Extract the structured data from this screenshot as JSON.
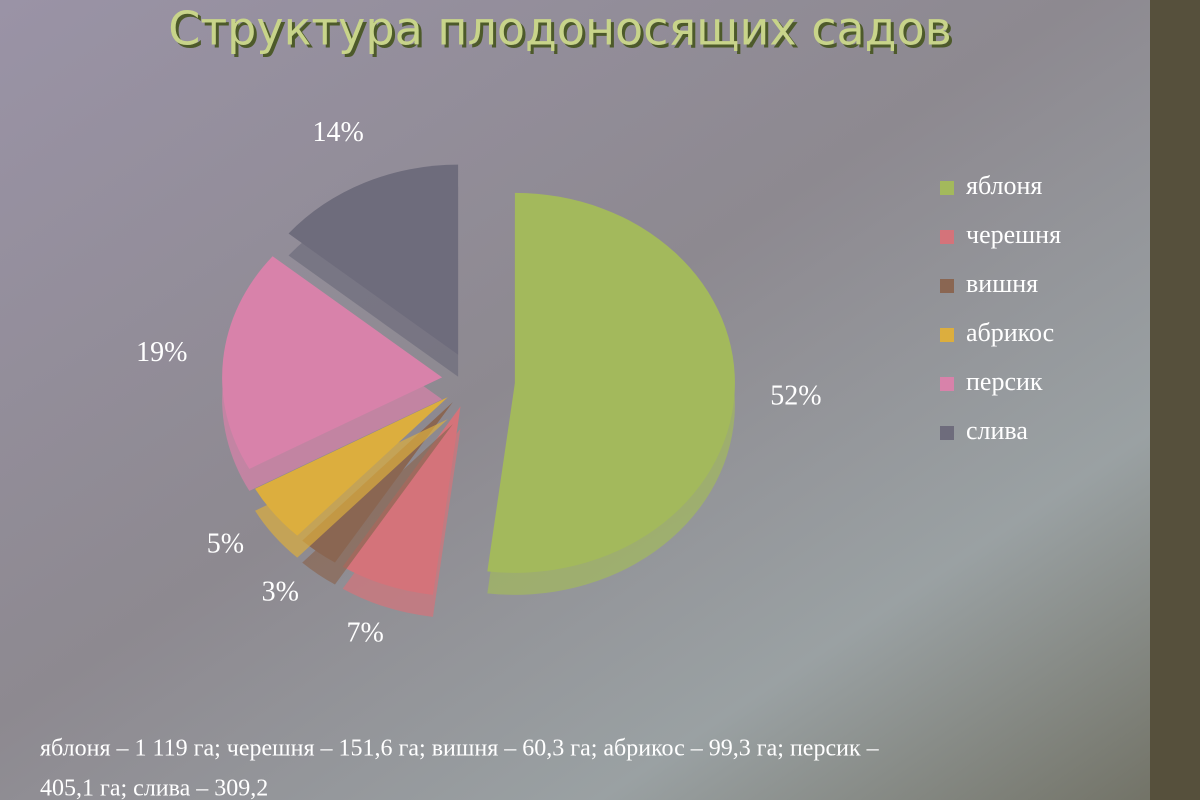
{
  "chart_data": {
    "type": "pie",
    "title": "Структура плодоносящих садов",
    "categories": [
      "яблоня",
      "черешня",
      "вишня",
      "абрикос",
      "персик",
      "слива"
    ],
    "values": [
      52,
      7,
      3,
      5,
      19,
      14
    ],
    "value_labels": [
      "52%",
      "7%",
      "3%",
      "5%",
      "19%",
      "14%"
    ],
    "colors": [
      "#a3b95c",
      "#d4737a",
      "#8a6652",
      "#dcae3e",
      "#d882aa",
      "#6e6c7c"
    ],
    "legend": "right",
    "footnote": [
      "яблоня – 1 119 га; черешня – 151,6 га; вишня – 60,3 га; абрикос – 99,3 га; персик –",
      "405,1 га; слива – 309,2"
    ]
  }
}
